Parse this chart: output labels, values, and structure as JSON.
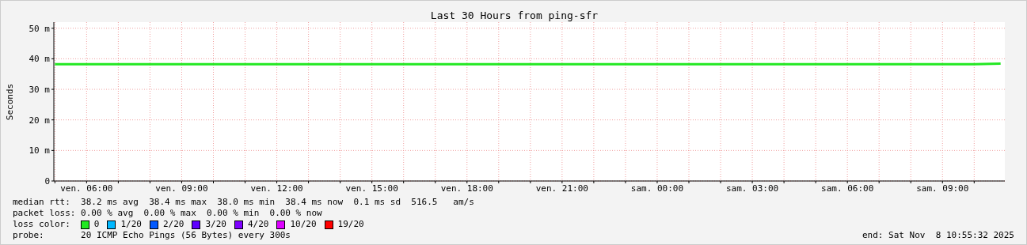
{
  "chart_data": {
    "type": "line",
    "title": "Last 30 Hours from ping-sfr",
    "ylabel": "Seconds",
    "x": [
      "2025-11-07T05:00",
      "2025-11-07T06:00",
      "2025-11-07T07:00",
      "2025-11-07T08:00",
      "2025-11-07T09:00",
      "2025-11-07T10:00",
      "2025-11-07T11:00",
      "2025-11-07T12:00",
      "2025-11-07T13:00",
      "2025-11-07T14:00",
      "2025-11-07T15:00",
      "2025-11-07T16:00",
      "2025-11-07T17:00",
      "2025-11-07T18:00",
      "2025-11-07T19:00",
      "2025-11-07T20:00",
      "2025-11-07T21:00",
      "2025-11-07T22:00",
      "2025-11-07T23:00",
      "2025-11-08T00:00",
      "2025-11-08T01:00",
      "2025-11-08T02:00",
      "2025-11-08T03:00",
      "2025-11-08T04:00",
      "2025-11-08T05:00",
      "2025-11-08T06:00",
      "2025-11-08T07:00",
      "2025-11-08T08:00",
      "2025-11-08T09:00",
      "2025-11-08T10:00",
      "2025-11-08T10:50"
    ],
    "series": [
      {
        "name": "0",
        "color": "#22e822",
        "values": [
          38.2,
          38.2,
          38.2,
          38.2,
          38.2,
          38.2,
          38.2,
          38.2,
          38.2,
          38.2,
          38.2,
          38.2,
          38.2,
          38.2,
          38.2,
          38.2,
          38.2,
          38.2,
          38.2,
          38.2,
          38.2,
          38.2,
          38.2,
          38.2,
          38.2,
          38.2,
          38.2,
          38.2,
          38.2,
          38.2,
          38.4
        ]
      },
      {
        "name": "1/20",
        "color": "#00b8ff",
        "values": [
          null,
          null,
          null,
          null,
          null,
          null,
          null,
          null,
          null,
          null,
          null,
          null,
          null,
          null,
          null,
          null,
          null,
          null,
          null,
          null,
          null,
          null,
          null,
          null,
          null,
          null,
          null,
          null,
          null,
          null,
          null
        ]
      },
      {
        "name": "2/20",
        "color": "#0059ff",
        "values": [
          null,
          null,
          null,
          null,
          null,
          null,
          null,
          null,
          null,
          null,
          null,
          null,
          null,
          null,
          null,
          null,
          null,
          null,
          null,
          null,
          null,
          null,
          null,
          null,
          null,
          null,
          null,
          null,
          null,
          null,
          null
        ]
      },
      {
        "name": "3/20",
        "color": "#5e00ff",
        "values": [
          null,
          null,
          null,
          null,
          null,
          null,
          null,
          null,
          null,
          null,
          null,
          null,
          null,
          null,
          null,
          null,
          null,
          null,
          null,
          null,
          null,
          null,
          null,
          null,
          null,
          null,
          null,
          null,
          null,
          null,
          null
        ]
      },
      {
        "name": "4/20",
        "color": "#7e00ff",
        "values": [
          null,
          null,
          null,
          null,
          null,
          null,
          null,
          null,
          null,
          null,
          null,
          null,
          null,
          null,
          null,
          null,
          null,
          null,
          null,
          null,
          null,
          null,
          null,
          null,
          null,
          null,
          null,
          null,
          null,
          null,
          null
        ]
      },
      {
        "name": "10/20",
        "color": "#dd00ff",
        "values": [
          null,
          null,
          null,
          null,
          null,
          null,
          null,
          null,
          null,
          null,
          null,
          null,
          null,
          null,
          null,
          null,
          null,
          null,
          null,
          null,
          null,
          null,
          null,
          null,
          null,
          null,
          null,
          null,
          null,
          null,
          null
        ]
      },
      {
        "name": "19/20",
        "color": "#ff0000",
        "values": [
          null,
          null,
          null,
          null,
          null,
          null,
          null,
          null,
          null,
          null,
          null,
          null,
          null,
          null,
          null,
          null,
          null,
          null,
          null,
          null,
          null,
          null,
          null,
          null,
          null,
          null,
          null,
          null,
          null,
          null,
          null
        ]
      }
    ],
    "xlim": [
      "2025-11-07T04:58",
      "2025-11-08T10:58"
    ],
    "xticks": [
      {
        "value": "2025-11-07T05:00",
        "label": null
      },
      {
        "value": "2025-11-07T06:00",
        "label": "ven. 06:00"
      },
      {
        "value": "2025-11-07T07:00",
        "label": null
      },
      {
        "value": "2025-11-07T08:00",
        "label": null
      },
      {
        "value": "2025-11-07T09:00",
        "label": "ven. 09:00"
      },
      {
        "value": "2025-11-07T10:00",
        "label": null
      },
      {
        "value": "2025-11-07T11:00",
        "label": null
      },
      {
        "value": "2025-11-07T12:00",
        "label": "ven. 12:00"
      },
      {
        "value": "2025-11-07T13:00",
        "label": null
      },
      {
        "value": "2025-11-07T14:00",
        "label": null
      },
      {
        "value": "2025-11-07T15:00",
        "label": "ven. 15:00"
      },
      {
        "value": "2025-11-07T16:00",
        "label": null
      },
      {
        "value": "2025-11-07T17:00",
        "label": null
      },
      {
        "value": "2025-11-07T18:00",
        "label": "ven. 18:00"
      },
      {
        "value": "2025-11-07T19:00",
        "label": null
      },
      {
        "value": "2025-11-07T20:00",
        "label": null
      },
      {
        "value": "2025-11-07T21:00",
        "label": "ven. 21:00"
      },
      {
        "value": "2025-11-07T22:00",
        "label": null
      },
      {
        "value": "2025-11-07T23:00",
        "label": null
      },
      {
        "value": "2025-11-08T00:00",
        "label": "sam. 00:00"
      },
      {
        "value": "2025-11-08T01:00",
        "label": null
      },
      {
        "value": "2025-11-08T02:00",
        "label": null
      },
      {
        "value": "2025-11-08T03:00",
        "label": "sam. 03:00"
      },
      {
        "value": "2025-11-08T04:00",
        "label": null
      },
      {
        "value": "2025-11-08T05:00",
        "label": null
      },
      {
        "value": "2025-11-08T06:00",
        "label": "sam. 06:00"
      },
      {
        "value": "2025-11-08T07:00",
        "label": null
      },
      {
        "value": "2025-11-08T08:00",
        "label": null
      },
      {
        "value": "2025-11-08T09:00",
        "label": "sam. 09:00"
      },
      {
        "value": "2025-11-08T10:00",
        "label": null
      }
    ],
    "ylim": [
      0,
      52
    ],
    "yticks": [
      0,
      {
        "value": 10,
        "label": "10 m"
      },
      {
        "value": 20,
        "label": "20 m"
      },
      {
        "value": 30,
        "label": "30 m"
      },
      {
        "value": 40,
        "label": "40 m"
      },
      {
        "value": 50,
        "label": "50 m"
      }
    ],
    "grid": true,
    "legend": "bottom",
    "marker": "none",
    "line_style": "solid",
    "annotations": [
      "median rtt:  38.2 ms avg  38.4 ms max  38.0 ms min  38.4 ms now  0.1 ms sd  516.5   am/s",
      "packet loss: 0.00 % avg  0.00 % max  0.00 % min  0.00 % now",
      "loss color:",
      "probe:       20 ICMP Echo Pings (56 Bytes) every 300s",
      "end: Sat Nov  8 10:55:32 2025"
    ]
  }
}
